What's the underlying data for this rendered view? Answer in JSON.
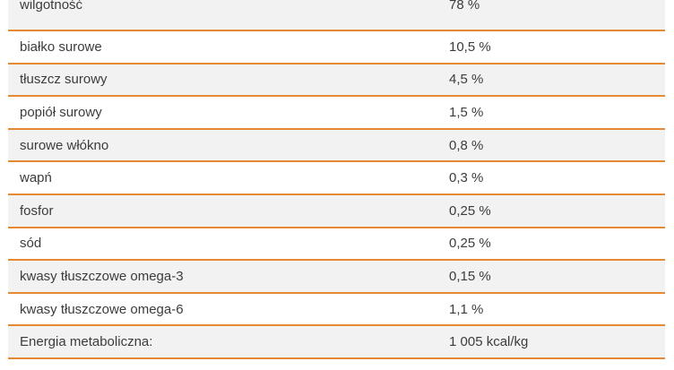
{
  "table": {
    "rows": [
      {
        "name": "wilgotność",
        "value": "78 %"
      },
      {
        "name": "białko surowe",
        "value": "10,5 %"
      },
      {
        "name": "tłuszcz surowy",
        "value": "4,5 %"
      },
      {
        "name": "popiół surowy",
        "value": "1,5 %"
      },
      {
        "name": "surowe włókno",
        "value": "0,8 %"
      },
      {
        "name": "wapń",
        "value": "0,3 %"
      },
      {
        "name": "fosfor",
        "value": "0,25 %"
      },
      {
        "name": "sód",
        "value": "0,25 %"
      },
      {
        "name": "kwasy tłuszczowe omega-3",
        "value": "0,15 %"
      },
      {
        "name": "kwasy tłuszczowe omega-6",
        "value": "1,1 %"
      },
      {
        "name": "Energia metaboliczna:",
        "value": "1 005 kcal/kg"
      }
    ],
    "colors": {
      "divider": "#e58a33",
      "shaded_row": "#f2f2f2",
      "text": "#3c3c3c"
    }
  }
}
